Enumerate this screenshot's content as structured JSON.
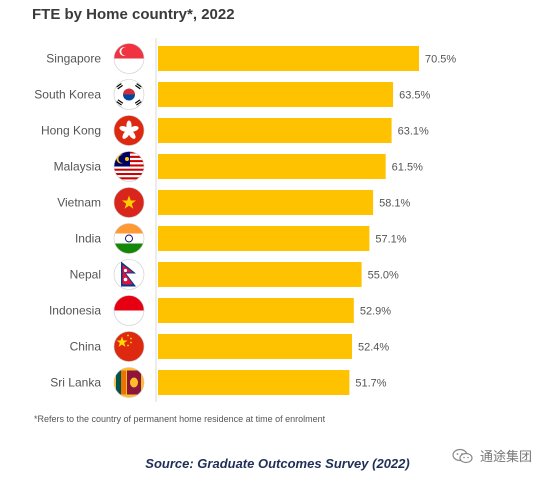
{
  "page": {
    "title": "FTE by Home country*, 2022",
    "footnote": "*Refers to the country of permanent home residence at time of enrolment",
    "source": "Source: Graduate Outcomes Survey (2022)",
    "watermark": "通途集团"
  },
  "colors": {
    "bar": "#FFC200",
    "text": "#555555",
    "source": "#1F2F57",
    "axis": "#D9D9D9"
  },
  "chart_data": {
    "type": "bar",
    "orientation": "horizontal",
    "title": "FTE by Home country*, 2022",
    "categories": [
      "Singapore",
      "South Korea",
      "Hong Kong",
      "Malaysia",
      "Vietnam",
      "India",
      "Nepal",
      "Indonesia",
      "China",
      "Sri Lanka"
    ],
    "values": [
      70.5,
      63.5,
      63.1,
      61.5,
      58.1,
      57.1,
      55.0,
      52.9,
      52.4,
      51.7
    ],
    "value_labels": [
      "70.5%",
      "63.5%",
      "63.1%",
      "61.5%",
      "58.1%",
      "57.1%",
      "55.0%",
      "52.9%",
      "52.4%",
      "51.7%"
    ],
    "flags": [
      "singapore-flag-icon",
      "south-korea-flag-icon",
      "hong-kong-flag-icon",
      "malaysia-flag-icon",
      "vietnam-flag-icon",
      "india-flag-icon",
      "nepal-flag-icon",
      "indonesia-flag-icon",
      "china-flag-icon",
      "sri-lanka-flag-icon"
    ],
    "xlim": [
      0,
      70.5
    ],
    "legend": "none",
    "grid": false
  }
}
